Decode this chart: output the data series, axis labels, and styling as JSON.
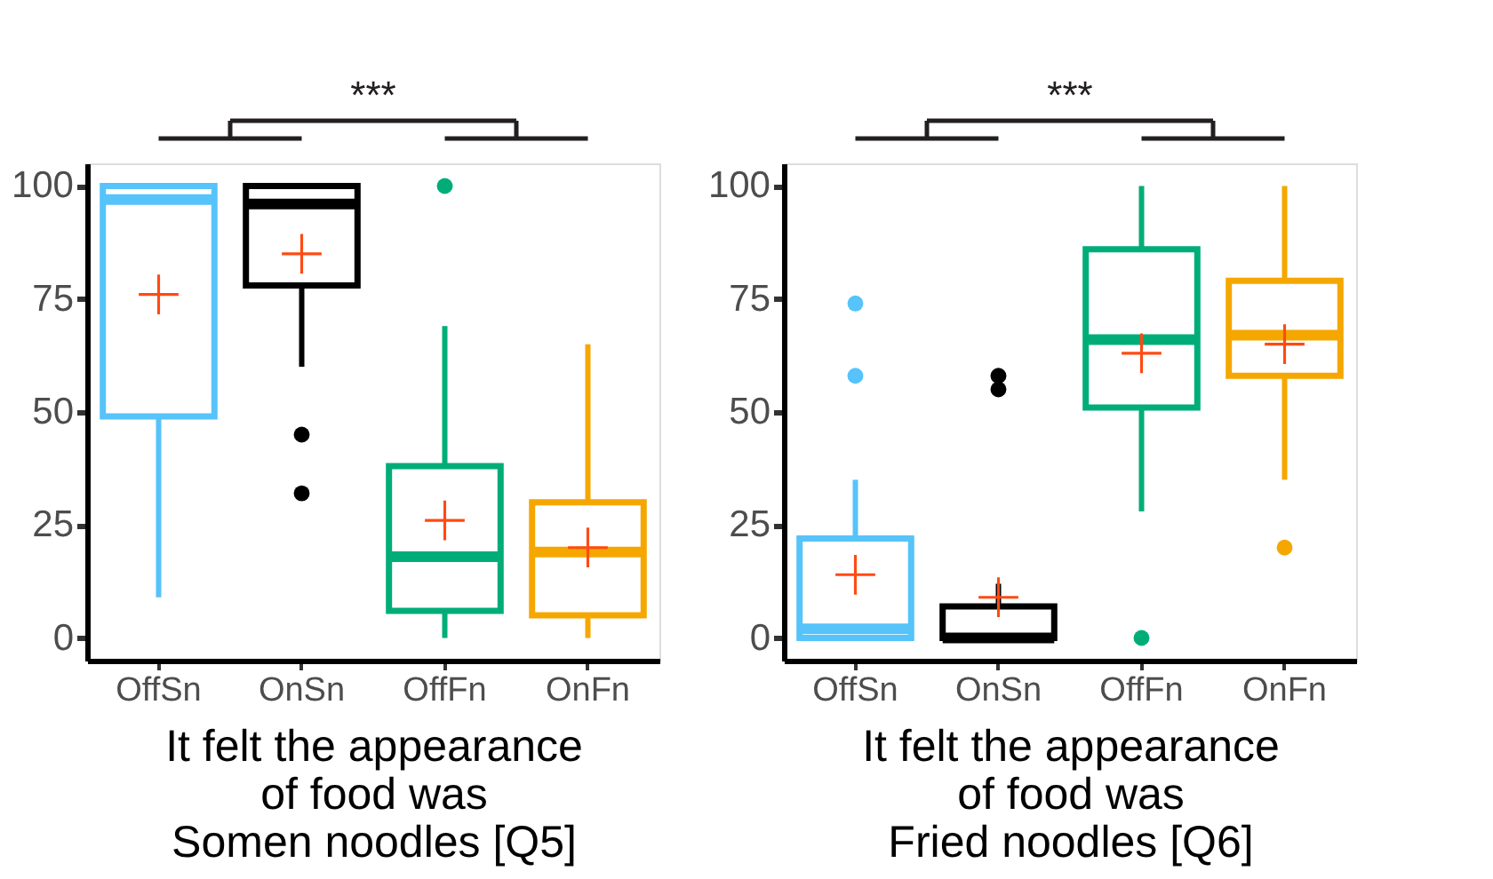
{
  "chart_data": [
    {
      "type": "box",
      "xlabel": "It felt the appearance\nof food was\nSomen noodles [Q5]",
      "categories": [
        "OffSn",
        "OnSn",
        "OffFn",
        "OnFn"
      ],
      "colors": [
        "#56c3fa",
        "#000000",
        "#00ad78",
        "#f5a700"
      ],
      "ylim": [
        -5,
        105
      ],
      "yticks": [
        0,
        25,
        50,
        75,
        100
      ],
      "grid": false,
      "legend": false,
      "annotations": [
        "***"
      ],
      "boxes": [
        {
          "low": 9,
          "q1": 49,
          "median": 97,
          "q3": 100,
          "high": 100,
          "mean": 76
        },
        {
          "low": 60,
          "q1": 78,
          "median": 96,
          "q3": 100,
          "high": 100,
          "mean": 85,
          "outliers": [
            45,
            32
          ]
        },
        {
          "low": 0,
          "q1": 6,
          "median": 18,
          "q3": 38,
          "high": 69,
          "mean": 26,
          "outliers": [
            100
          ]
        },
        {
          "low": 0,
          "q1": 5,
          "median": 19,
          "q3": 30,
          "high": 65,
          "mean": 20
        }
      ]
    },
    {
      "type": "box",
      "xlabel": "It felt the appearance\nof food was\nFried noodles [Q6]",
      "categories": [
        "OffSn",
        "OnSn",
        "OffFn",
        "OnFn"
      ],
      "colors": [
        "#56c3fa",
        "#000000",
        "#00ad78",
        "#f5a700"
      ],
      "ylim": [
        -5,
        105
      ],
      "yticks": [
        0,
        25,
        50,
        75,
        100
      ],
      "grid": false,
      "legend": false,
      "annotations": [
        "***"
      ],
      "boxes": [
        {
          "low": 0,
          "q1": 0,
          "median": 2,
          "q3": 22,
          "high": 35,
          "mean": 14,
          "outliers": [
            74,
            58
          ]
        },
        {
          "low": 0,
          "q1": 0,
          "median": 0,
          "q3": 7,
          "high": 12,
          "mean": 9,
          "outliers": [
            58,
            55
          ]
        },
        {
          "low": 28,
          "q1": 51,
          "median": 66,
          "q3": 86,
          "high": 100,
          "mean": 63,
          "outliers": [
            0
          ]
        },
        {
          "low": 35,
          "q1": 58,
          "median": 67,
          "q3": 79,
          "high": 100,
          "mean": 65,
          "outliers": [
            20
          ]
        }
      ]
    }
  ]
}
